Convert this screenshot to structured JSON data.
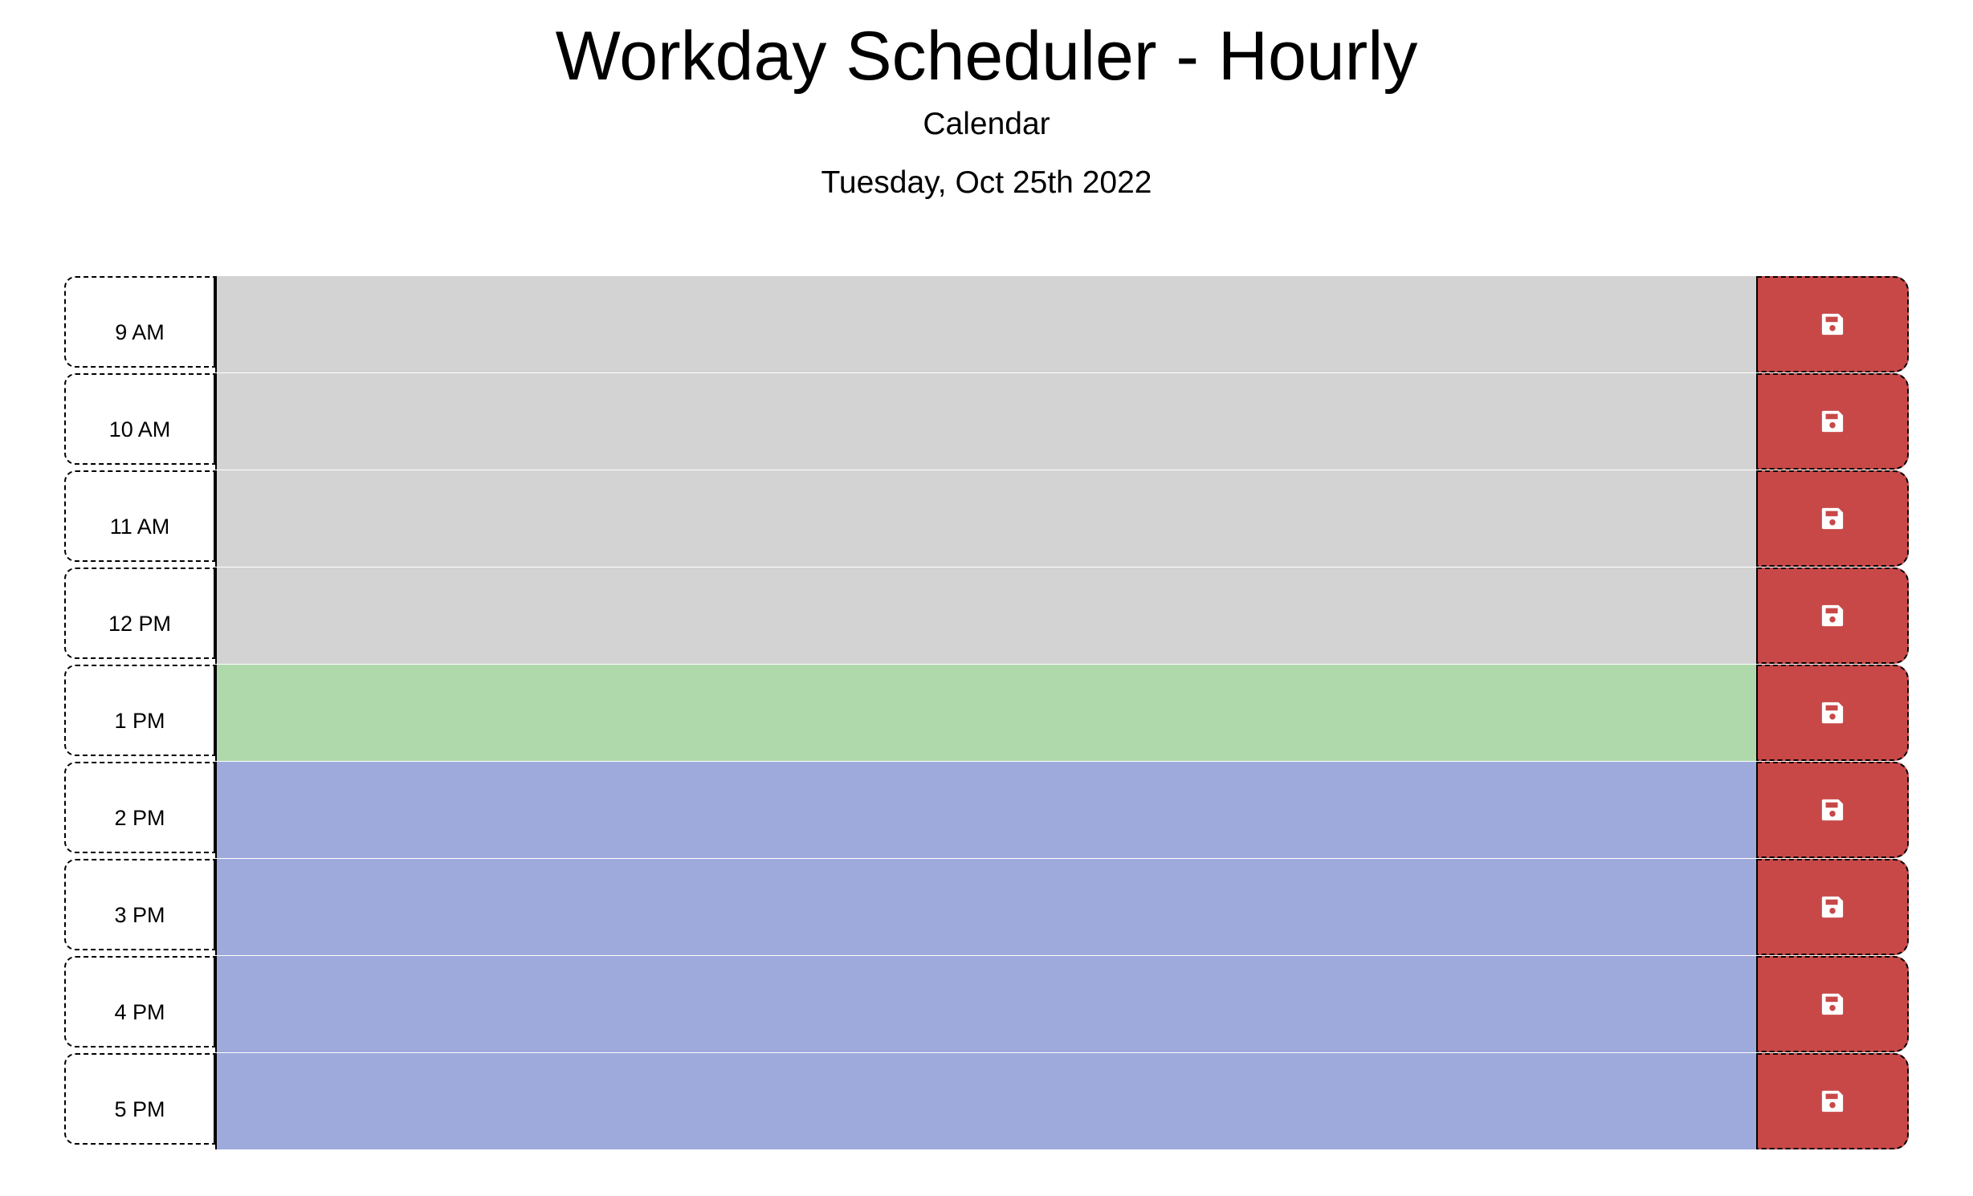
{
  "header": {
    "title": "Workday Scheduler - Hourly",
    "subtitle": "Calendar",
    "current_date": "Tuesday, Oct 25th 2022"
  },
  "colors": {
    "past": "#d3d3d3",
    "present": "#afd9aa",
    "future": "#9faadc",
    "save_button": "#c84848"
  },
  "save_icon": "floppy-disk-icon",
  "time_blocks": [
    {
      "hour": "9 AM",
      "state": "past",
      "text": ""
    },
    {
      "hour": "10 AM",
      "state": "past",
      "text": ""
    },
    {
      "hour": "11 AM",
      "state": "past",
      "text": ""
    },
    {
      "hour": "12 PM",
      "state": "past",
      "text": ""
    },
    {
      "hour": "1 PM",
      "state": "present",
      "text": ""
    },
    {
      "hour": "2 PM",
      "state": "future",
      "text": ""
    },
    {
      "hour": "3 PM",
      "state": "future",
      "text": ""
    },
    {
      "hour": "4 PM",
      "state": "future",
      "text": ""
    },
    {
      "hour": "5 PM",
      "state": "future",
      "text": ""
    }
  ]
}
